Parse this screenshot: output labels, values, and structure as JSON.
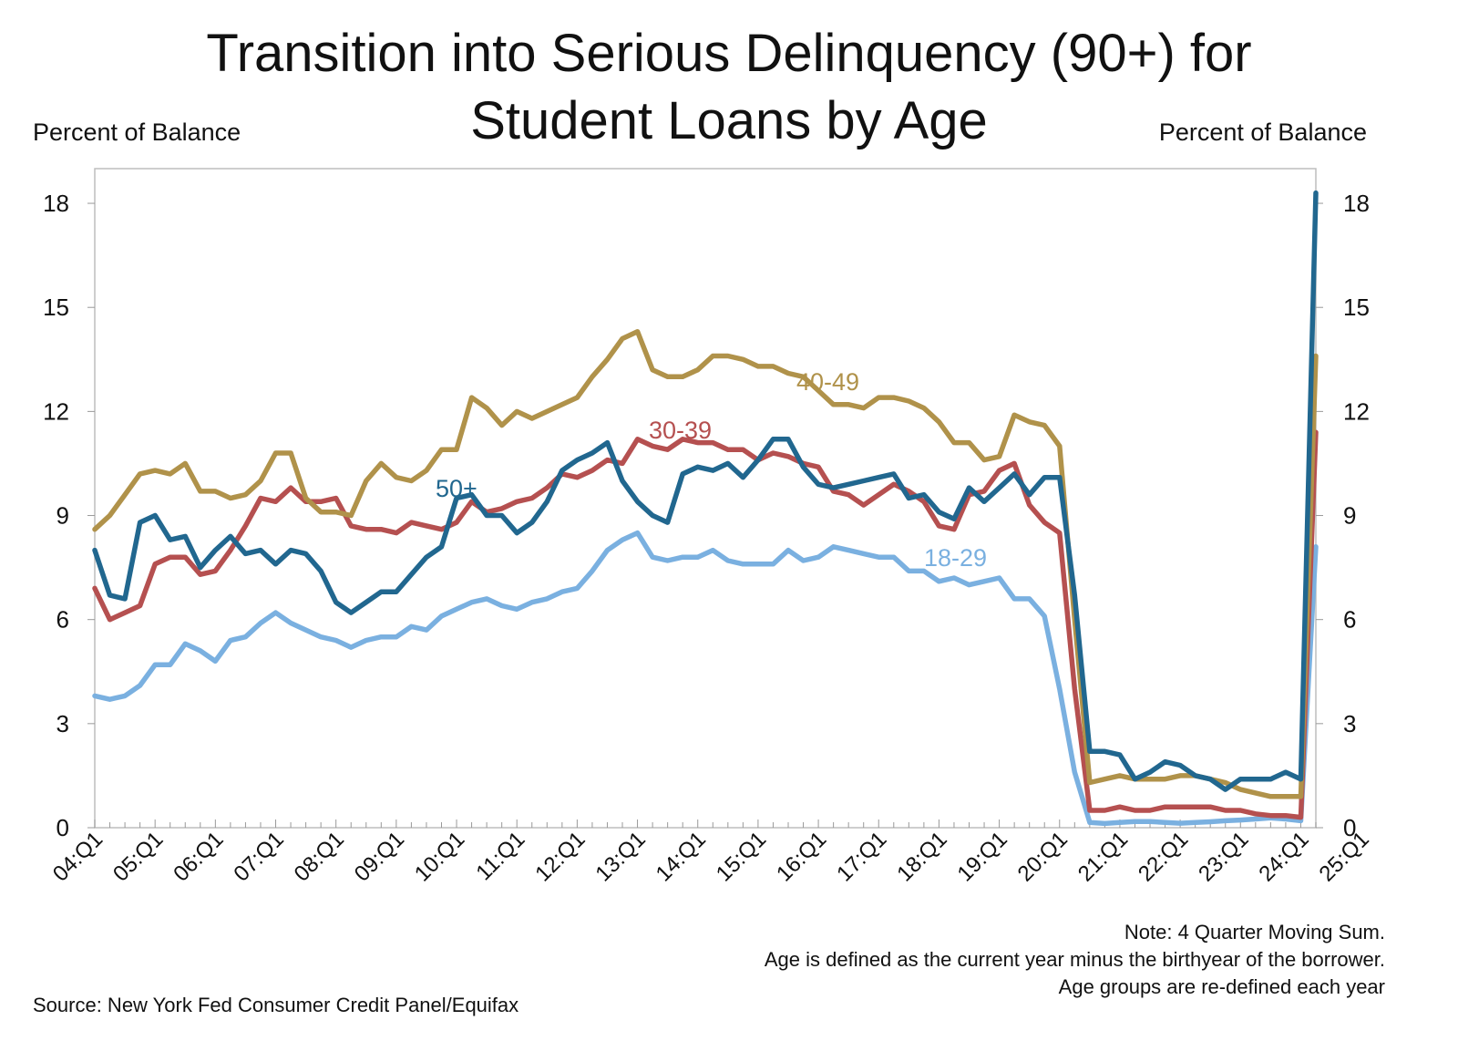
{
  "chart_data": {
    "type": "line",
    "title_lines": [
      "Transition into Serious Delinquency (90+) for",
      "Student Loans by Age"
    ],
    "ylabel_left": "Percent of Balance",
    "ylabel_right": "Percent of Balance",
    "ylim": [
      0,
      19
    ],
    "yticks": [
      0,
      3,
      6,
      9,
      12,
      15,
      18
    ],
    "x_start": "04:Q1",
    "x_tick_labels": [
      "04:Q1",
      "05:Q1",
      "06:Q1",
      "07:Q1",
      "08:Q1",
      "09:Q1",
      "10:Q1",
      "11:Q1",
      "12:Q1",
      "13:Q1",
      "14:Q1",
      "15:Q1",
      "16:Q1",
      "17:Q1",
      "18:Q1",
      "19:Q1",
      "20:Q1",
      "21:Q1",
      "22:Q1",
      "23:Q1",
      "24:Q1",
      "25:Q1"
    ],
    "x_last": "25:Q2",
    "grid": false,
    "series": [
      {
        "name": "18-29",
        "color": "#7ab0e0",
        "values": [
          3.8,
          3.7,
          3.8,
          4.1,
          4.7,
          4.7,
          5.3,
          5.1,
          4.8,
          5.4,
          5.5,
          5.9,
          6.2,
          5.9,
          5.7,
          5.5,
          5.4,
          5.2,
          5.4,
          5.5,
          5.5,
          5.8,
          5.7,
          6.1,
          6.3,
          6.5,
          6.6,
          6.4,
          6.3,
          6.5,
          6.6,
          6.8,
          6.9,
          7.4,
          8.0,
          8.3,
          8.5,
          7.8,
          7.7,
          7.8,
          7.8,
          8.0,
          7.7,
          7.6,
          7.6,
          7.6,
          8.0,
          7.7,
          7.8,
          8.1,
          8.0,
          7.9,
          7.8,
          7.8,
          7.4,
          7.4,
          7.1,
          7.2,
          7.0,
          7.1,
          7.2,
          6.6,
          6.6,
          6.1,
          4.0,
          1.6,
          0.15,
          0.12,
          0.15,
          0.18,
          0.18,
          0.15,
          0.13,
          0.15,
          0.17,
          0.2,
          0.22,
          0.25,
          0.28,
          0.25,
          0.2,
          8.1
        ]
      },
      {
        "name": "30-39",
        "color": "#b55050",
        "values": [
          6.9,
          6.0,
          6.2,
          6.4,
          7.6,
          7.8,
          7.8,
          7.3,
          7.4,
          8.0,
          8.7,
          9.5,
          9.4,
          9.8,
          9.4,
          9.4,
          9.5,
          8.7,
          8.6,
          8.6,
          8.5,
          8.8,
          8.7,
          8.6,
          8.8,
          9.4,
          9.1,
          9.2,
          9.4,
          9.5,
          9.8,
          10.2,
          10.1,
          10.3,
          10.6,
          10.5,
          11.2,
          11.0,
          10.9,
          11.2,
          11.1,
          11.1,
          10.9,
          10.9,
          10.6,
          10.8,
          10.7,
          10.5,
          10.4,
          9.7,
          9.6,
          9.3,
          9.6,
          9.9,
          9.7,
          9.4,
          8.7,
          8.6,
          9.6,
          9.7,
          10.3,
          10.5,
          9.3,
          8.8,
          8.5,
          4.0,
          0.5,
          0.5,
          0.6,
          0.5,
          0.5,
          0.6,
          0.6,
          0.6,
          0.6,
          0.5,
          0.5,
          0.4,
          0.35,
          0.35,
          0.3,
          11.4
        ]
      },
      {
        "name": "40-49",
        "color": "#b0924a",
        "values": [
          8.6,
          9.0,
          9.6,
          10.2,
          10.3,
          10.2,
          10.5,
          9.7,
          9.7,
          9.5,
          9.6,
          10.0,
          10.8,
          10.8,
          9.5,
          9.1,
          9.1,
          9.0,
          10.0,
          10.5,
          10.1,
          10.0,
          10.3,
          10.9,
          10.9,
          12.4,
          12.1,
          11.6,
          12.0,
          11.8,
          12.0,
          12.2,
          12.4,
          13.0,
          13.5,
          14.1,
          14.3,
          13.2,
          13.0,
          13.0,
          13.2,
          13.6,
          13.6,
          13.5,
          13.3,
          13.3,
          13.1,
          13.0,
          12.6,
          12.2,
          12.2,
          12.1,
          12.4,
          12.4,
          12.3,
          12.1,
          11.7,
          11.1,
          11.1,
          10.6,
          10.7,
          11.9,
          11.7,
          11.6,
          11.0,
          6.0,
          1.3,
          1.4,
          1.5,
          1.4,
          1.4,
          1.4,
          1.5,
          1.5,
          1.4,
          1.3,
          1.1,
          1.0,
          0.9,
          0.9,
          0.9,
          13.6
        ]
      },
      {
        "name": "50+",
        "color": "#21678f",
        "values": [
          8.0,
          6.7,
          6.6,
          8.8,
          9.0,
          8.3,
          8.4,
          7.5,
          8.0,
          8.4,
          7.9,
          8.0,
          7.6,
          8.0,
          7.9,
          7.4,
          6.5,
          6.2,
          6.5,
          6.8,
          6.8,
          7.3,
          7.8,
          8.1,
          9.5,
          9.6,
          9.0,
          9.0,
          8.5,
          8.8,
          9.4,
          10.3,
          10.6,
          10.8,
          11.1,
          10.0,
          9.4,
          9.0,
          8.8,
          10.2,
          10.4,
          10.3,
          10.5,
          10.1,
          10.6,
          11.2,
          11.2,
          10.4,
          9.9,
          9.8,
          9.9,
          10.0,
          10.1,
          10.2,
          9.5,
          9.6,
          9.1,
          8.9,
          9.8,
          9.4,
          9.8,
          10.2,
          9.6,
          10.1,
          10.1,
          6.7,
          2.2,
          2.2,
          2.1,
          1.4,
          1.6,
          1.9,
          1.8,
          1.5,
          1.4,
          1.1,
          1.4,
          1.4,
          1.4,
          1.6,
          1.4,
          18.3
        ]
      }
    ],
    "annotations": [
      {
        "text": "40-49",
        "series": "40-49",
        "color": "#b0924a"
      },
      {
        "text": "30-39",
        "series": "30-39",
        "color": "#b55050"
      },
      {
        "text": "50+",
        "series": "50+",
        "color": "#21678f"
      },
      {
        "text": "18-29",
        "series": "18-29",
        "color": "#7ab0e0"
      }
    ]
  },
  "notes": [
    "Note: 4 Quarter Moving Sum.",
    "Age is defined as the current year minus the birthyear of the borrower.",
    "Age groups are re-defined each year"
  ],
  "source": "Source: New York Fed Consumer Credit Panel/Equifax"
}
